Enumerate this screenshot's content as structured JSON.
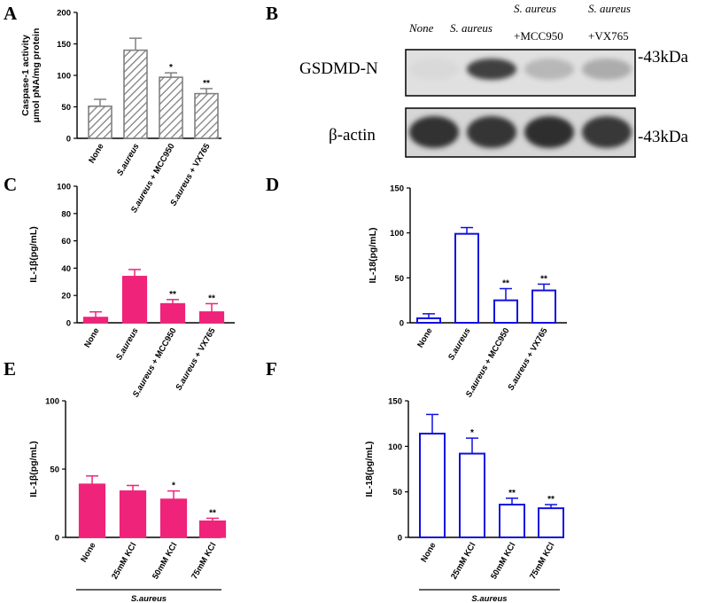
{
  "chart_data": [
    {
      "panel": "A",
      "type": "bar",
      "style": "hatched",
      "color": "#808080",
      "ylabel": "Caspase-1 activity",
      "ylabel2": "μmol pNA/mg protein",
      "ylim": [
        0,
        200
      ],
      "yticks": [
        "0",
        "50",
        "100",
        "150",
        "200"
      ],
      "categories": [
        "None",
        "S.aureus",
        "S.aureus + MCC950",
        "S.aureus + VX765"
      ],
      "italic_prefix": "S.aureus",
      "values": [
        51,
        140,
        97,
        71
      ],
      "errors": [
        11,
        19,
        7,
        8
      ],
      "sig": [
        "",
        "",
        "*",
        "**"
      ]
    },
    {
      "panel": "C",
      "type": "bar",
      "style": "filled",
      "color": "#f0237a",
      "ylabel": "IL-1β(pg/mL)",
      "ylim": [
        0,
        100
      ],
      "yticks": [
        "0",
        "20",
        "40",
        "60",
        "80",
        "100"
      ],
      "categories": [
        "None",
        "S.aureus",
        "S.aureus + MCC950",
        "S.aureus + VX765"
      ],
      "italic_prefix": "S.aureus",
      "values": [
        4,
        34,
        14,
        8
      ],
      "errors": [
        4,
        5,
        3,
        6
      ],
      "sig": [
        "",
        "",
        "**",
        "**"
      ]
    },
    {
      "panel": "D",
      "type": "bar",
      "style": "open",
      "color": "#1010e0",
      "ylabel": "IL-18(pg/mL)",
      "ylim": [
        0,
        150
      ],
      "yticks": [
        "0",
        "50",
        "100",
        "150"
      ],
      "categories": [
        "None",
        "S.aureus",
        "S.aureus + MCC950",
        "S.aureus + VX765"
      ],
      "italic_prefix": "S.aureus",
      "values": [
        5,
        99,
        25,
        36
      ],
      "errors": [
        5,
        7,
        13,
        7
      ],
      "sig": [
        "",
        "",
        "**",
        "**"
      ]
    },
    {
      "panel": "E",
      "type": "bar",
      "style": "filled",
      "color": "#f0237a",
      "ylabel": "IL-1β(pg/mL)",
      "ylim": [
        0,
        100
      ],
      "yticks": [
        "0",
        "50",
        "100"
      ],
      "categories": [
        "None",
        "25mM KCl",
        "50mM KCl",
        "75mM KCl"
      ],
      "italic_prefix": "",
      "values": [
        39,
        34,
        28,
        12
      ],
      "errors": [
        6,
        4,
        6,
        2
      ],
      "sig": [
        "",
        "",
        "*",
        "**"
      ],
      "group_label": "S.aureus"
    },
    {
      "panel": "F",
      "type": "bar",
      "style": "open",
      "color": "#1010e0",
      "ylabel": "IL-18(pg/mL)",
      "ylim": [
        0,
        150
      ],
      "yticks": [
        "0",
        "50",
        "100",
        "150"
      ],
      "categories": [
        "None",
        "25mM KCl",
        "50mM KCl",
        "75mM KCl"
      ],
      "italic_prefix": "",
      "values": [
        114,
        92,
        36,
        32
      ],
      "errors": [
        21,
        17,
        7,
        4
      ],
      "sig": [
        "",
        "*",
        "**",
        "**"
      ],
      "group_label": "S.aureus"
    }
  ],
  "blot": {
    "panel": "B",
    "columns": [
      {
        "line1": "None",
        "line2": ""
      },
      {
        "line1": "S. aureus",
        "line2": ""
      },
      {
        "line1": "S. aureus",
        "line2": "+MCC950"
      },
      {
        "line1": "S. aureus",
        "line2": "+VX765"
      }
    ],
    "rows": [
      "GSDMD-N",
      "β-actin"
    ],
    "marker": "-43kDa",
    "intensity": [
      [
        0.06,
        0.85,
        0.35,
        0.42
      ],
      [
        0.95,
        0.92,
        0.97,
        0.9
      ]
    ]
  }
}
